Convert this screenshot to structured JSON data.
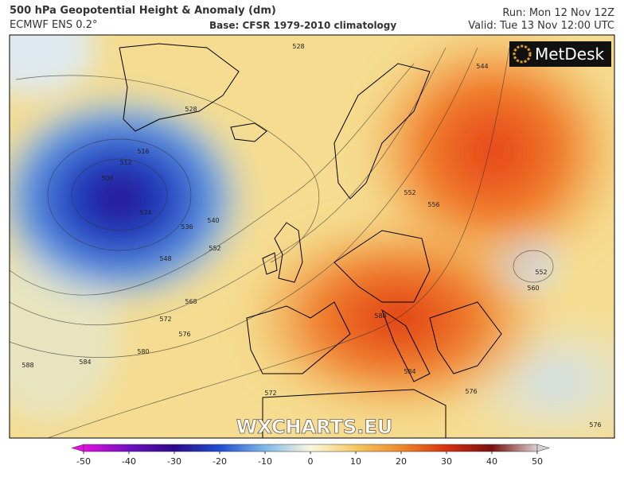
{
  "header": {
    "title": "500 hPa Geopotential Height & Anomaly (dm)",
    "model": "ECMWF ENS 0.2°",
    "base": "Base: CFSR 1979-2010 climatology",
    "run": "Run: Mon 12 Nov 12Z",
    "valid": "Valid: Tue 13 Nov 12:00 UTC"
  },
  "logo": "MetDesk",
  "watermark": "WXCHARTS.EU",
  "contour_labels": [
    528,
    528,
    516,
    512,
    508,
    524,
    536,
    540,
    552,
    548,
    568,
    572,
    576,
    580,
    584,
    588,
    544,
    552,
    556,
    552,
    560,
    580,
    584,
    576,
    572,
    576
  ],
  "colorbar": {
    "lim": [
      -50,
      50
    ],
    "ticks": [
      -50,
      -40,
      -30,
      -20,
      -10,
      0,
      10,
      20,
      30,
      40,
      50
    ]
  }
}
